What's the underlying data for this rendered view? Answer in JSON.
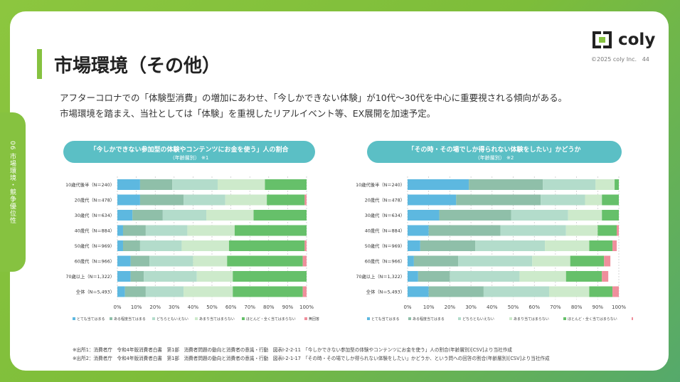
{
  "sidebar": {
    "section_label": "06 市場環境・競争優位性"
  },
  "header": {
    "title": "市場環境（その他）",
    "logo_text": "coly",
    "copyright": "©2025 coly Inc.",
    "page_number": "44"
  },
  "lead": {
    "line1": "アフターコロナでの「体験型消費」の増加にあわせ、「今しかできない体験」が10代〜30代を中心に重要視される傾向がある。",
    "line2": "市場環境を踏まえ、当社としては「体験」を重視したリアルイベント等、EX展開を加速予定。"
  },
  "colors": {
    "brand_green": "#86c240",
    "pill_teal": "#5bbfc5"
  },
  "legend": [
    "とても当てはまる",
    "ある程度当てはまる",
    "どちらともいえない",
    "あまり当てはまらない",
    "ほとんど・全く当てはまらない",
    "無回答"
  ],
  "segment_colors": [
    "#5db8e0",
    "#8fbfa9",
    "#b3dccb",
    "#cdeacb",
    "#66c06a",
    "#ef8f9c"
  ],
  "xticks": [
    "0%",
    "10%",
    "20%",
    "30%",
    "40%",
    "50%",
    "60%",
    "70%",
    "80%",
    "90%",
    "100%"
  ],
  "chart_data": [
    {
      "type": "bar",
      "orientation": "horizontal",
      "stacked": true,
      "title": "「今しかできない参加型の体験やコンテンツにお金を使う」人の割合",
      "subtitle": "（年齢層別）",
      "footnote_mark": "※1",
      "categories": [
        "10歳代後半（N＝240）",
        "20歳代（N＝478）",
        "30歳代（N＝634）",
        "40歳代（N＝884）",
        "50歳代（N＝969）",
        "60歳代（N＝966）",
        "70歳以上（N＝1,322）",
        "全体（N＝5,493）"
      ],
      "series": [
        {
          "name": "とても当てはまる",
          "values": [
            12,
            12,
            8,
            3,
            3,
            7,
            7,
            4
          ]
        },
        {
          "name": "ある程度当てはまる",
          "values": [
            17,
            23,
            16,
            12,
            9,
            10,
            7,
            11
          ]
        },
        {
          "name": "どちらともいえない",
          "values": [
            24,
            22,
            23,
            22,
            22,
            23,
            28,
            20
          ]
        },
        {
          "name": "あまり当てはまらない",
          "values": [
            25,
            22,
            25,
            25,
            25,
            18,
            19,
            26
          ]
        },
        {
          "name": "ほとんど・全く当てはまらない",
          "values": [
            22,
            20,
            28,
            38,
            40,
            40,
            39,
            37
          ]
        },
        {
          "name": "無回答",
          "values": [
            0,
            1,
            0,
            0,
            1,
            2,
            0,
            2
          ]
        }
      ],
      "xlim": [
        0,
        100
      ],
      "legend_position": "bottom"
    },
    {
      "type": "bar",
      "orientation": "horizontal",
      "stacked": true,
      "title": "「その時・その場でしか得られない体験をしたい」かどうか",
      "subtitle": "（年齢層別）",
      "footnote_mark": "※2",
      "categories": [
        "10歳代後半（N＝240）",
        "20歳代（N＝478）",
        "30歳代（N＝634）",
        "40歳代（N＝884）",
        "50歳代（N＝969）",
        "60歳代（N＝966）",
        "70歳以上（N＝1,322）",
        "全体（N＝5,493）"
      ],
      "series": [
        {
          "name": "とても当てはまる",
          "values": [
            29,
            23,
            15,
            10,
            6,
            3,
            5,
            10
          ]
        },
        {
          "name": "ある程度当てはまる",
          "values": [
            35,
            40,
            34,
            34,
            26,
            21,
            15,
            26
          ]
        },
        {
          "name": "どちらともいえない",
          "values": [
            25,
            21,
            27,
            31,
            33,
            35,
            33,
            31
          ]
        },
        {
          "name": "あまり当てはまらない",
          "values": [
            9,
            8,
            16,
            15,
            21,
            18,
            22,
            19
          ]
        },
        {
          "name": "ほとんど・全く当てはまらない",
          "values": [
            2,
            8,
            8,
            9,
            11,
            16,
            17,
            11
          ]
        },
        {
          "name": "無回答",
          "values": [
            0,
            0,
            0,
            1,
            2,
            3,
            3,
            3
          ]
        }
      ],
      "xlim": [
        0,
        100
      ],
      "legend_position": "bottom"
    }
  ],
  "footnotes": {
    "note1": "※出所1：消費者庁　令和4年版消費者白書　第1部　消費者問題の動向と消費者の意識・行動　図表Ⅰ-2-2-11　「今しかできない参加型の体験やコンテンツにお金を使う」人の割合(年齢層別)[CSV]より当社作成",
    "note2": "※出所2：消費者庁　令和4年版消費者白書　第1部　消費者問題の動向と消費者の意識・行動　図表Ⅰ-2-1-17　「その時・その場でしか得られない体験をしたい」かどうか、という問への回答の割合(年齢層別)[CSV]より当社作成"
  }
}
